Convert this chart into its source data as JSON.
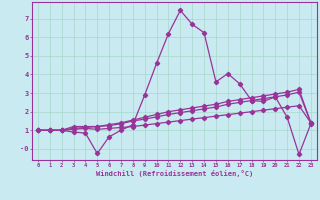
{
  "xlabel": "Windchill (Refroidissement éolien,°C)",
  "background_color": "#c8eaf0",
  "grid_color": "#a8d8cc",
  "line_color": "#993399",
  "spine_color": "#993399",
  "xlim": [
    -0.5,
    23.5
  ],
  "ylim": [
    -0.6,
    7.9
  ],
  "xticks": [
    0,
    1,
    2,
    3,
    4,
    5,
    6,
    7,
    8,
    9,
    10,
    11,
    12,
    13,
    14,
    15,
    16,
    17,
    18,
    19,
    20,
    21,
    22,
    23
  ],
  "yticks": [
    0,
    1,
    2,
    3,
    4,
    5,
    6,
    7
  ],
  "ytick_labels": [
    "-0",
    "1",
    "2",
    "3",
    "4",
    "5",
    "6",
    "7"
  ],
  "line_jagged_x": [
    0,
    1,
    2,
    3,
    4,
    5,
    6,
    7,
    8,
    9,
    10,
    11,
    12,
    13,
    14,
    15,
    16,
    17,
    18,
    19,
    20,
    21,
    22,
    23
  ],
  "line_jagged_y": [
    1.0,
    1.0,
    1.0,
    0.9,
    0.85,
    -0.25,
    0.65,
    1.0,
    1.3,
    2.9,
    4.6,
    6.2,
    7.45,
    6.7,
    6.25,
    3.6,
    4.05,
    3.5,
    2.6,
    2.55,
    2.8,
    1.7,
    -0.3,
    1.35
  ],
  "line_smooth1_x": [
    0,
    1,
    2,
    3,
    4,
    5,
    6,
    7,
    8,
    9,
    10,
    11,
    12,
    13,
    14,
    15,
    16,
    17,
    18,
    19,
    20,
    21,
    22,
    23
  ],
  "line_smooth1_y": [
    1.0,
    1.0,
    1.0,
    1.2,
    1.2,
    1.2,
    1.3,
    1.4,
    1.55,
    1.7,
    1.85,
    2.0,
    2.1,
    2.2,
    2.3,
    2.4,
    2.55,
    2.65,
    2.75,
    2.85,
    2.95,
    3.05,
    3.2,
    1.4
  ],
  "line_smooth2_x": [
    0,
    1,
    2,
    3,
    4,
    5,
    6,
    7,
    8,
    9,
    10,
    11,
    12,
    13,
    14,
    15,
    16,
    17,
    18,
    19,
    20,
    21,
    22,
    23
  ],
  "line_smooth2_y": [
    1.0,
    1.0,
    1.0,
    1.1,
    1.15,
    1.2,
    1.25,
    1.35,
    1.5,
    1.6,
    1.72,
    1.85,
    1.95,
    2.05,
    2.15,
    2.25,
    2.4,
    2.5,
    2.6,
    2.7,
    2.8,
    2.9,
    3.05,
    1.4
  ],
  "line_smooth3_x": [
    0,
    1,
    2,
    3,
    4,
    5,
    6,
    7,
    8,
    9,
    10,
    11,
    12,
    13,
    14,
    15,
    16,
    17,
    18,
    19,
    20,
    21,
    22,
    23
  ],
  "line_smooth3_y": [
    1.0,
    1.0,
    1.0,
    1.05,
    1.1,
    1.05,
    1.1,
    1.15,
    1.2,
    1.28,
    1.36,
    1.44,
    1.52,
    1.6,
    1.68,
    1.76,
    1.84,
    1.92,
    2.0,
    2.08,
    2.16,
    2.24,
    2.32,
    1.4
  ]
}
